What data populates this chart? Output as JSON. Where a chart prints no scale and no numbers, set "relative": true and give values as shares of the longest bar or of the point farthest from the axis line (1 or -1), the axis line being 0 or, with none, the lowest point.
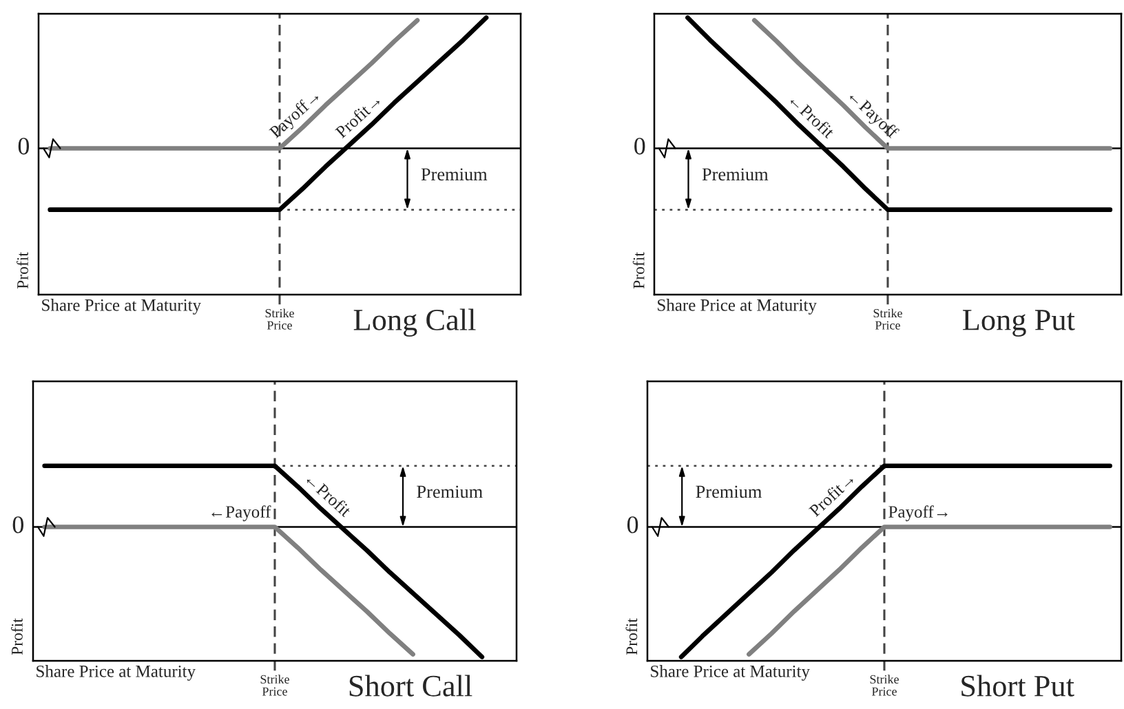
{
  "chart_data": [
    {
      "type": "line",
      "title": "Long Call",
      "xlabel": "Share Price at Maturity",
      "ylabel": "Profit",
      "relative": true,
      "categories": [
        null,
        null,
        null,
        null,
        null,
        null,
        null,
        null,
        null,
        null,
        null,
        null,
        null,
        null,
        null,
        null,
        null,
        null,
        null,
        null,
        null
      ],
      "series": [
        {
          "name": "Payoff→",
          "color": "#808080",
          "values": [
            0,
            0,
            0,
            0,
            0,
            0,
            0,
            0,
            0,
            0,
            0,
            0.16,
            0.33,
            0.49,
            0.65,
            0.82,
            0.98,
            null,
            null,
            null,
            null
          ]
        },
        {
          "name": "Profit→",
          "color": "#000000",
          "values": [
            -0.47,
            -0.47,
            -0.47,
            -0.47,
            -0.47,
            -0.47,
            -0.47,
            -0.47,
            -0.47,
            -0.47,
            -0.47,
            -0.31,
            -0.14,
            0.02,
            0.18,
            0.35,
            0.51,
            0.67,
            0.83,
            1.0,
            null
          ]
        }
      ],
      "ref_lines": [
        {
          "axis": "y",
          "value": 0,
          "label": "0",
          "line_style": "solid",
          "color": "#000000"
        },
        {
          "axis": "y",
          "value": -0.47,
          "line_style": "dotted",
          "color": "#444444"
        }
      ],
      "annotations": [
        "Strike\nPrice",
        "Premium"
      ]
    },
    {
      "type": "line",
      "title": "Long Put",
      "xlabel": "Share Price at Maturity",
      "ylabel": "Profit",
      "relative": true,
      "categories": [
        null,
        null,
        null,
        null,
        null,
        null,
        null,
        null,
        null,
        null,
        null,
        null,
        null,
        null,
        null,
        null,
        null,
        null,
        null,
        null,
        null
      ],
      "series": [
        {
          "name": "←Payoff",
          "color": "#808080",
          "values": [
            null,
            null,
            null,
            null,
            0.98,
            0.82,
            0.65,
            0.49,
            0.33,
            0.16,
            0,
            0,
            0,
            0,
            0,
            0,
            0,
            0,
            0,
            0,
            0
          ]
        },
        {
          "name": "←Profit",
          "color": "#000000",
          "values": [
            null,
            1.0,
            0.83,
            0.67,
            0.51,
            0.35,
            0.18,
            0.02,
            -0.14,
            -0.31,
            -0.47,
            -0.47,
            -0.47,
            -0.47,
            -0.47,
            -0.47,
            -0.47,
            -0.47,
            -0.47,
            -0.47,
            -0.47
          ]
        }
      ],
      "ref_lines": [
        {
          "axis": "y",
          "value": 0,
          "label": "0",
          "line_style": "solid",
          "color": "#000000"
        },
        {
          "axis": "y",
          "value": -0.47,
          "line_style": "dotted",
          "color": "#444444"
        }
      ],
      "annotations": [
        "Strike\nPrice",
        "Premium"
      ]
    },
    {
      "type": "line",
      "title": "Short Call",
      "xlabel": "Share Price at Maturity",
      "ylabel": "Profit",
      "relative": true,
      "categories": [
        null,
        null,
        null,
        null,
        null,
        null,
        null,
        null,
        null,
        null,
        null,
        null,
        null,
        null,
        null,
        null,
        null,
        null,
        null,
        null,
        null
      ],
      "series": [
        {
          "name": "←Payoff",
          "color": "#808080",
          "values": [
            0,
            0,
            0,
            0,
            0,
            0,
            0,
            0,
            0,
            0,
            0,
            -0.16,
            -0.33,
            -0.49,
            -0.65,
            -0.82,
            -0.98,
            null,
            null,
            null,
            null
          ]
        },
        {
          "name": "←Profit",
          "color": "#000000",
          "values": [
            0.47,
            0.47,
            0.47,
            0.47,
            0.47,
            0.47,
            0.47,
            0.47,
            0.47,
            0.47,
            0.47,
            0.31,
            0.14,
            -0.02,
            -0.18,
            -0.35,
            -0.51,
            -0.67,
            -0.83,
            -1.0,
            null
          ]
        }
      ],
      "ref_lines": [
        {
          "axis": "y",
          "value": 0,
          "label": "0",
          "line_style": "solid",
          "color": "#000000"
        },
        {
          "axis": "y",
          "value": 0.47,
          "line_style": "dotted",
          "color": "#444444"
        }
      ],
      "annotations": [
        "Strike\nPrice",
        "Premium"
      ]
    },
    {
      "type": "line",
      "title": "Short Put",
      "xlabel": "Share Price at Maturity",
      "ylabel": "Profit",
      "relative": true,
      "categories": [
        null,
        null,
        null,
        null,
        null,
        null,
        null,
        null,
        null,
        null,
        null,
        null,
        null,
        null,
        null,
        null,
        null,
        null,
        null,
        null,
        null
      ],
      "series": [
        {
          "name": "Payoff→",
          "color": "#808080",
          "values": [
            null,
            null,
            null,
            null,
            -0.98,
            -0.82,
            -0.65,
            -0.49,
            -0.33,
            -0.16,
            0,
            0,
            0,
            0,
            0,
            0,
            0,
            0,
            0,
            0,
            0
          ]
        },
        {
          "name": "Profit→",
          "color": "#000000",
          "values": [
            null,
            -1.0,
            -0.83,
            -0.67,
            -0.51,
            -0.35,
            -0.18,
            -0.02,
            0.14,
            0.31,
            0.47,
            0.47,
            0.47,
            0.47,
            0.47,
            0.47,
            0.47,
            0.47,
            0.47,
            0.47,
            0.47
          ]
        }
      ],
      "ref_lines": [
        {
          "axis": "y",
          "value": 0,
          "label": "0",
          "line_style": "solid",
          "color": "#000000"
        },
        {
          "axis": "y",
          "value": 0.47,
          "line_style": "dotted",
          "color": "#444444"
        }
      ],
      "annotations": [
        "Strike\nPrice",
        "Premium"
      ]
    }
  ]
}
